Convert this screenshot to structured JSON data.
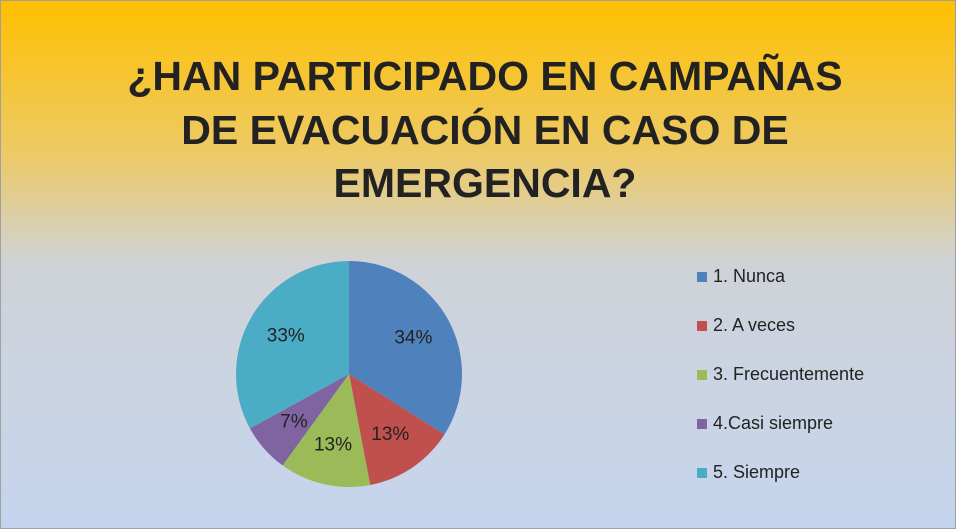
{
  "chart_data": {
    "type": "pie",
    "title": [
      "¿HAN PARTICIPADO EN CAMPAÑAS",
      "DE EVACUACIÓN EN CASO DE",
      "EMERGENCIA?"
    ],
    "categories": [
      "1. Nunca",
      "2. A veces",
      "3. Frecuentemente",
      "4.Casi siempre",
      "5. Siempre"
    ],
    "values": [
      34,
      13,
      13,
      7,
      33
    ],
    "value_labels": [
      "34%",
      "13%",
      "13%",
      "7%",
      "33%"
    ],
    "colors": [
      "#4f81bd",
      "#c0504d",
      "#9bbb59",
      "#8064a2",
      "#4bacc6"
    ],
    "legend": "right"
  }
}
